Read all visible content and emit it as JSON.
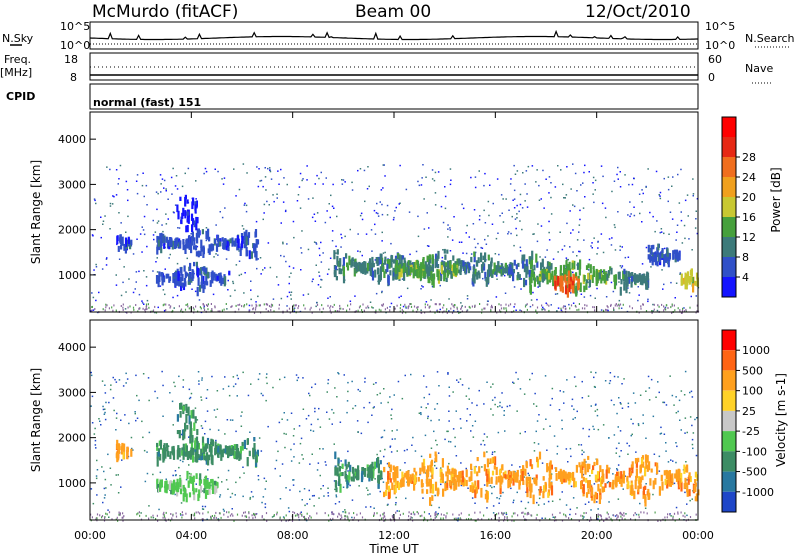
{
  "header": {
    "station": "McMurdo (fitACF)",
    "beam": "Beam 00",
    "date": "12/Oct/2010"
  },
  "nsky_panel": {
    "left_label": "N.Sky",
    "right_label": "N.Search",
    "left_ticks": [
      "10^5",
      "10^0"
    ],
    "right_ticks": [
      "10^5",
      "10^0"
    ]
  },
  "freq_panel": {
    "left_label_1": "Freq.",
    "left_label_2": "[MHz]",
    "right_label": "Nave",
    "left_ticks": [
      "18",
      "8"
    ],
    "right_ticks": [
      "60",
      "0"
    ]
  },
  "cpid_panel": {
    "label": "CPID",
    "text": "normal (fast) 151"
  },
  "chart_data": [
    {
      "type": "heatmap",
      "name": "power",
      "ylabel": "Slant Range [km]",
      "xlabel": "",
      "yticks": [
        "1000",
        "2000",
        "3000",
        "4000"
      ],
      "ylim": [
        180,
        4600
      ],
      "colorbar": {
        "title": "Power [dB]",
        "ticks": [
          "4",
          "8",
          "12",
          "16",
          "20",
          "24",
          "28"
        ],
        "colors": [
          "#1414ff",
          "#3050c8",
          "#3c7a7a",
          "#46a03c",
          "#c8c832",
          "#f0a01e",
          "#f06e1e",
          "#e62814",
          "#ff0000"
        ]
      },
      "regions": [
        {
          "t0": 1.0,
          "t1": 1.6,
          "r0": 1450,
          "r1": 2100,
          "level": 1
        },
        {
          "t0": 2.6,
          "t1": 6.6,
          "r0": 1500,
          "r1": 2050,
          "level": 1
        },
        {
          "t0": 2.6,
          "t1": 5.5,
          "r0": 700,
          "r1": 1300,
          "level": 1
        },
        {
          "t0": 3.4,
          "t1": 4.2,
          "r0": 2000,
          "r1": 2800,
          "level": 0
        },
        {
          "t0": 9.6,
          "t1": 15.0,
          "r0": 900,
          "r1": 1600,
          "level": 2
        },
        {
          "t0": 12.0,
          "t1": 14.5,
          "r0": 900,
          "r1": 1500,
          "level": 3
        },
        {
          "t0": 15.0,
          "t1": 18.2,
          "r0": 850,
          "r1": 1550,
          "level": 2
        },
        {
          "t0": 17.3,
          "t1": 20.8,
          "r0": 650,
          "r1": 1450,
          "level": 3
        },
        {
          "t0": 18.3,
          "t1": 19.3,
          "r0": 700,
          "r1": 1100,
          "level": 6
        },
        {
          "t0": 20.8,
          "t1": 22.0,
          "r0": 650,
          "r1": 1300,
          "level": 2
        },
        {
          "t0": 22.0,
          "t1": 23.3,
          "r0": 1300,
          "r1": 1700,
          "level": 1
        },
        {
          "t0": 23.3,
          "t1": 24.0,
          "r0": 700,
          "r1": 1200,
          "level": 4
        }
      ]
    },
    {
      "type": "heatmap",
      "name": "velocity",
      "ylabel": "Slant Range [km]",
      "xlabel": "Time UT",
      "yticks": [
        "1000",
        "2000",
        "3000",
        "4000"
      ],
      "ylim": [
        180,
        4600
      ],
      "xticks": [
        "00:00",
        "04:00",
        "08:00",
        "12:00",
        "16:00",
        "20:00",
        "00:00"
      ],
      "xlim": [
        0,
        24
      ],
      "colorbar": {
        "title": "Velocity [m s-1]",
        "ticks": [
          "1000",
          "500",
          "100",
          "25",
          "-25",
          "-100",
          "-500",
          "-1000"
        ],
        "colors": [
          "#1e46c8",
          "#2878a0",
          "#3c8c64",
          "#50c850",
          "#c8c8c8",
          "#ffd228",
          "#ffa01e",
          "#ff6414",
          "#ff0000"
        ]
      },
      "regions": [
        {
          "t0": 1.0,
          "t1": 1.6,
          "r0": 1450,
          "r1": 2100,
          "level": 6
        },
        {
          "t0": 2.6,
          "t1": 6.6,
          "r0": 1500,
          "r1": 2050,
          "level": 2
        },
        {
          "t0": 2.6,
          "t1": 5.0,
          "r0": 700,
          "r1": 1300,
          "level": 3
        },
        {
          "t0": 3.4,
          "t1": 4.2,
          "r0": 2000,
          "r1": 2800,
          "level": 2
        },
        {
          "t0": 9.6,
          "t1": 11.5,
          "r0": 900,
          "r1": 1700,
          "level": 2
        },
        {
          "t0": 11.5,
          "t1": 24.0,
          "r0": 650,
          "r1": 1700,
          "level": 6
        }
      ]
    }
  ],
  "time_axis": {
    "xlabel": "Time UT",
    "xticks": [
      "00:00",
      "04:00",
      "08:00",
      "12:00",
      "16:00",
      "20:00",
      "00:00"
    ]
  }
}
